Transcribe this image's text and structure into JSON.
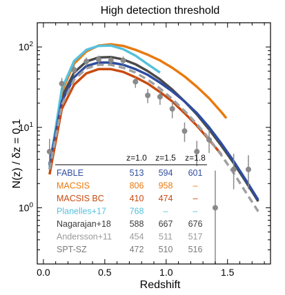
{
  "chart_data": {
    "type": "line",
    "title": "High detection threshold",
    "xlabel": "Redshift",
    "ylabel": "N(z) / δz = 0.1",
    "xlim": [
      -0.05,
      1.85
    ],
    "ylim": [
      0.2,
      200
    ],
    "yscale": "log",
    "grid": false,
    "x_ticks": [
      {
        "value": 0.0,
        "label": "0.0"
      },
      {
        "value": 0.5,
        "label": "0.5"
      },
      {
        "value": 1.0,
        "label": "1.0"
      },
      {
        "value": 1.5,
        "label": "1.5"
      }
    ],
    "y_ticks": [
      {
        "value": 1,
        "label": "10",
        "exp": "0"
      },
      {
        "value": 10,
        "label": "10",
        "exp": "1"
      },
      {
        "value": 100,
        "label": "10",
        "exp": "2"
      }
    ],
    "series": [
      {
        "name": "Nagarajan+18",
        "color": "#4a4a4a",
        "style": "solid",
        "width": 3.5,
        "x": [
          0.05,
          0.15,
          0.25,
          0.35,
          0.45,
          0.55,
          0.65,
          0.75,
          0.85,
          0.95,
          1.05,
          1.15,
          1.25,
          1.35,
          1.45,
          1.55,
          1.65,
          1.75
        ],
        "y": [
          3.5,
          24,
          48,
          66,
          74,
          75,
          70,
          61,
          50,
          39.5,
          29.5,
          21,
          14.5,
          9.4,
          5.9,
          3.6,
          2.1,
          1.2
        ]
      },
      {
        "name": "MACSIS",
        "color": "#e9790e",
        "style": "solid",
        "width": 3.5,
        "x": [
          0.05,
          0.15,
          0.25,
          0.35,
          0.45,
          0.55,
          0.65,
          0.75,
          0.85,
          0.95,
          1.05,
          1.15,
          1.25,
          1.35,
          1.45,
          1.49
        ],
        "y": [
          3.0,
          28,
          62,
          88,
          104,
          108,
          103,
          92,
          80,
          68,
          55,
          43,
          32,
          23,
          15.5,
          13
        ]
      },
      {
        "name": "Planelles+17",
        "color": "#56c1dc",
        "style": "solid",
        "width": 3.5,
        "x": [
          0.05,
          0.15,
          0.25,
          0.35,
          0.45,
          0.55,
          0.65,
          0.75,
          0.85,
          0.95
        ],
        "y": [
          3.2,
          30,
          67,
          92,
          103,
          104,
          94,
          78,
          61,
          48
        ]
      },
      {
        "name": "FABLE",
        "color": "#2e4d9f",
        "style": "solid",
        "width": 3.5,
        "x": [
          0.05,
          0.15,
          0.25,
          0.35,
          0.45,
          0.55,
          0.65,
          0.75,
          0.85,
          0.95,
          1.05,
          1.15,
          1.25,
          1.35,
          1.45,
          1.55,
          1.65,
          1.75
        ],
        "y": [
          3.4,
          21,
          42,
          58,
          64,
          64,
          60,
          53,
          45,
          36,
          28,
          21,
          15,
          10,
          6.3,
          3.8,
          2.2,
          1.25
        ]
      },
      {
        "name": "MACSIS BC",
        "color": "#c84a10",
        "style": "solid",
        "width": 3.5,
        "x": [
          0.05,
          0.15,
          0.25,
          0.35,
          0.45,
          0.55,
          0.65,
          0.75,
          0.85,
          0.95,
          1.05,
          1.15,
          1.25,
          1.35,
          1.45
        ],
        "y": [
          2.6,
          17,
          34,
          47,
          53,
          53,
          49,
          42,
          35,
          27.5,
          21,
          15,
          10.5,
          7.0,
          4.6
        ]
      },
      {
        "name": "Andersson+11",
        "color": "#a0a0a0",
        "style": "dashed",
        "width": 3.5,
        "x": [
          0.05,
          0.15,
          0.25,
          0.35,
          0.45,
          0.55,
          0.65,
          0.75,
          0.85,
          0.95,
          1.05,
          1.15,
          1.25,
          1.35,
          1.45,
          1.55,
          1.65,
          1.75
        ],
        "y": [
          3.0,
          19,
          39,
          54,
          60,
          60,
          55,
          48,
          39,
          30.5,
          22.5,
          16,
          11,
          7.2,
          4.5,
          2.7,
          1.55,
          0.9
        ]
      }
    ],
    "points": {
      "name": "SPT-SZ",
      "color": "#8a8a8a",
      "x": [
        0.05,
        0.15,
        0.25,
        0.35,
        0.45,
        0.55,
        0.65,
        0.75,
        0.85,
        0.95,
        1.05,
        1.15,
        1.25,
        1.35,
        1.4,
        1.55,
        1.67
      ],
      "y": [
        5.0,
        35,
        52,
        66,
        70,
        68,
        68,
        37,
        25,
        24,
        17,
        9,
        5,
        7,
        1,
        3,
        3
      ],
      "ylo": [
        3.2,
        29,
        45,
        58,
        62,
        60,
        60,
        31,
        20,
        19,
        13,
        6.6,
        3.3,
        4.8,
        0.15,
        1.7,
        1.7
      ],
      "yhi": [
        7.2,
        41,
        60,
        74,
        78,
        76,
        76,
        43,
        30,
        29,
        21,
        11.5,
        6.8,
        9.3,
        2.9,
        4.7,
        4.5
      ]
    },
    "table": {
      "headers": [
        "z=1.0",
        "z=1.5",
        "z=1.8"
      ],
      "rows": [
        {
          "name": "FABLE",
          "color": "#2e4d9f",
          "values": [
            "513",
            "594",
            "601"
          ]
        },
        {
          "name": "MACSIS",
          "color": "#e9790e",
          "values": [
            "806",
            "958",
            "–"
          ]
        },
        {
          "name": "MACSIS BC",
          "color": "#c84a10",
          "values": [
            "410",
            "474",
            "–"
          ]
        },
        {
          "name": "Planelles+17",
          "color": "#56c1dc",
          "values": [
            "768",
            "–",
            "–"
          ]
        },
        {
          "name": "Nagarajan+18",
          "color": "#3a3a3a",
          "values": [
            "588",
            "667",
            "676"
          ]
        },
        {
          "name": "Andersson+11",
          "color": "#9a9a9a",
          "values": [
            "454",
            "511",
            "517"
          ]
        },
        {
          "name": "SPT-SZ",
          "color": "#7a7a7a",
          "values": [
            "472",
            "510",
            "516"
          ]
        }
      ]
    }
  }
}
